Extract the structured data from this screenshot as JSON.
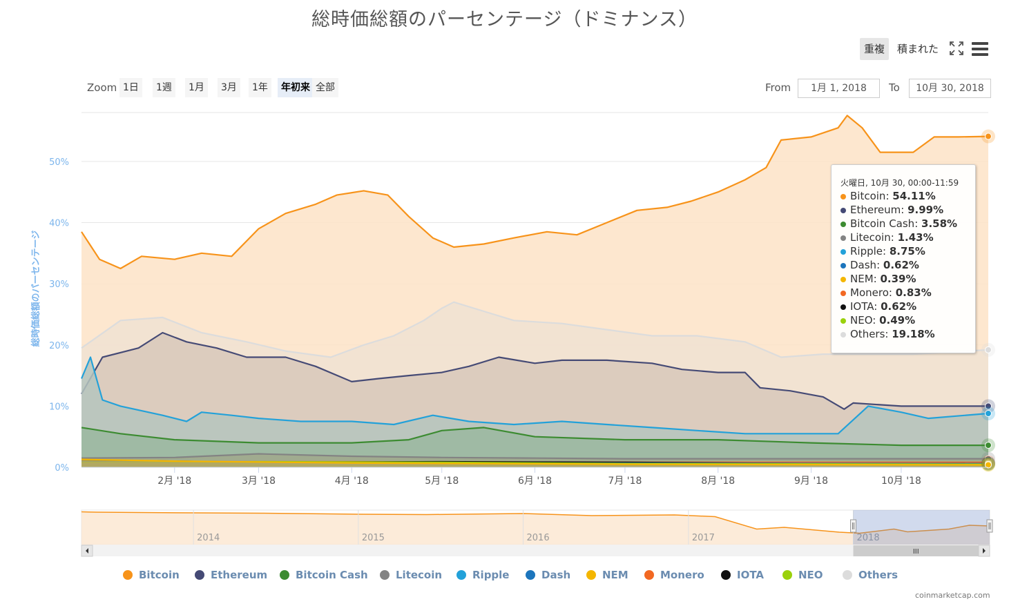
{
  "title": "総時価総額のパーセンテージ（ドミナンス）",
  "toolbar": {
    "overlap_label": "重複",
    "stacked_label": "積まれた",
    "fullscreen_icon": "fullscreen-icon",
    "menu_icon": "hamburger-menu-icon"
  },
  "zoom": {
    "label": "Zoom",
    "buttons": [
      "1日",
      "1週",
      "1月",
      "3月",
      "1年",
      "年初来",
      "全部"
    ],
    "active": "年初来"
  },
  "range": {
    "from_label": "From",
    "from_value": "1月 1, 2018",
    "to_label": "To",
    "to_value": "10月 30, 2018"
  },
  "tooltip": {
    "header": "火曜日, 10月 30, 00:00-11:59",
    "rows": [
      {
        "name": "Bitcoin",
        "value": "54.11%",
        "color": "#f7931a"
      },
      {
        "name": "Ethereum",
        "value": "9.99%",
        "color": "#454a75"
      },
      {
        "name": "Bitcoin Cash",
        "value": "3.58%",
        "color": "#3c8b31"
      },
      {
        "name": "Litecoin",
        "value": "1.43%",
        "color": "#838383"
      },
      {
        "name": "Ripple",
        "value": "8.75%",
        "color": "#23a1d9"
      },
      {
        "name": "Dash",
        "value": "0.62%",
        "color": "#1c75bc"
      },
      {
        "name": "NEM",
        "value": "0.39%",
        "color": "#f4b600"
      },
      {
        "name": "Monero",
        "value": "0.83%",
        "color": "#f26822"
      },
      {
        "name": "IOTA",
        "value": "0.62%",
        "color": "#111111"
      },
      {
        "name": "NEO",
        "value": "0.49%",
        "color": "#9ad10c"
      },
      {
        "name": "Others",
        "value": "19.18%",
        "color": "#dcdcdc"
      }
    ]
  },
  "legend": [
    {
      "name": "Bitcoin",
      "color": "#f7931a"
    },
    {
      "name": "Ethereum",
      "color": "#454a75"
    },
    {
      "name": "Bitcoin Cash",
      "color": "#3c8b31"
    },
    {
      "name": "Litecoin",
      "color": "#838383"
    },
    {
      "name": "Ripple",
      "color": "#23a1d9"
    },
    {
      "name": "Dash",
      "color": "#1c75bc"
    },
    {
      "name": "NEM",
      "color": "#f4b600"
    },
    {
      "name": "Monero",
      "color": "#f26822"
    },
    {
      "name": "IOTA",
      "color": "#111111"
    },
    {
      "name": "NEO",
      "color": "#9ad10c"
    },
    {
      "name": "Others",
      "color": "#dcdcdc"
    }
  ],
  "credit": "coinmarketcap.com",
  "navigator": {
    "years": [
      "2014",
      "2015",
      "2016",
      "2017",
      "2018"
    ],
    "scroll_grip": "III"
  },
  "chart_data": {
    "type": "area",
    "title": "総時価総額のパーセンテージ（ドミナンス）",
    "ylabel": "総時価総額のパーセンテージ",
    "ylim": [
      0,
      58
    ],
    "yticks": [
      0,
      10,
      20,
      30,
      40,
      50
    ],
    "ytick_labels": [
      "0%",
      "10%",
      "20%",
      "30%",
      "40%",
      "50%"
    ],
    "x_range": [
      "2018-01-01",
      "2018-10-30"
    ],
    "xticks": [
      {
        "date": "2018-02-01",
        "label": "2月 '18"
      },
      {
        "date": "2018-03-01",
        "label": "3月 '18"
      },
      {
        "date": "2018-04-01",
        "label": "4月 '18"
      },
      {
        "date": "2018-05-01",
        "label": "5月 '18"
      },
      {
        "date": "2018-06-01",
        "label": "6月 '18"
      },
      {
        "date": "2018-07-01",
        "label": "7月 '18"
      },
      {
        "date": "2018-08-01",
        "label": "8月 '18"
      },
      {
        "date": "2018-09-01",
        "label": "9月 '18"
      },
      {
        "date": "2018-10-01",
        "label": "10月 '18"
      }
    ],
    "grid": true,
    "legend_position": "bottom",
    "series": [
      {
        "name": "Bitcoin",
        "color": "#f7931a",
        "fill": "#fde3c7",
        "points": [
          [
            "2018-01-01",
            38.5
          ],
          [
            "2018-01-07",
            34
          ],
          [
            "2018-01-14",
            32.5
          ],
          [
            "2018-01-21",
            34.5
          ],
          [
            "2018-02-01",
            34
          ],
          [
            "2018-02-10",
            35
          ],
          [
            "2018-02-20",
            34.5
          ],
          [
            "2018-03-01",
            39
          ],
          [
            "2018-03-10",
            41.5
          ],
          [
            "2018-03-20",
            43
          ],
          [
            "2018-03-27",
            44.5
          ],
          [
            "2018-04-05",
            45.2
          ],
          [
            "2018-04-13",
            44.5
          ],
          [
            "2018-04-20",
            41
          ],
          [
            "2018-04-28",
            37.5
          ],
          [
            "2018-05-05",
            36
          ],
          [
            "2018-05-15",
            36.5
          ],
          [
            "2018-05-25",
            37.5
          ],
          [
            "2018-06-05",
            38.5
          ],
          [
            "2018-06-15",
            38
          ],
          [
            "2018-06-25",
            40
          ],
          [
            "2018-07-05",
            42
          ],
          [
            "2018-07-15",
            42.5
          ],
          [
            "2018-07-23",
            43.5
          ],
          [
            "2018-08-01",
            45
          ],
          [
            "2018-08-10",
            47
          ],
          [
            "2018-08-17",
            49
          ],
          [
            "2018-08-22",
            53.5
          ],
          [
            "2018-09-01",
            54
          ],
          [
            "2018-09-10",
            55.5
          ],
          [
            "2018-09-13",
            57.5
          ],
          [
            "2018-09-18",
            55.5
          ],
          [
            "2018-09-24",
            51.5
          ],
          [
            "2018-10-05",
            51.5
          ],
          [
            "2018-10-12",
            54
          ],
          [
            "2018-10-20",
            54
          ],
          [
            "2018-10-30",
            54.1
          ]
        ]
      },
      {
        "name": "Others",
        "color": "#dcdcdc",
        "fill": "#f0e2d2",
        "points": [
          [
            "2018-01-01",
            19.5
          ],
          [
            "2018-01-14",
            24
          ],
          [
            "2018-01-28",
            24.5
          ],
          [
            "2018-02-10",
            22
          ],
          [
            "2018-02-25",
            20.5
          ],
          [
            "2018-03-10",
            19
          ],
          [
            "2018-03-25",
            18
          ],
          [
            "2018-04-05",
            20
          ],
          [
            "2018-04-15",
            21.5
          ],
          [
            "2018-04-25",
            24
          ],
          [
            "2018-05-01",
            26
          ],
          [
            "2018-05-05",
            27
          ],
          [
            "2018-05-15",
            25.5
          ],
          [
            "2018-05-25",
            24
          ],
          [
            "2018-06-10",
            23.5
          ],
          [
            "2018-06-25",
            22.5
          ],
          [
            "2018-07-10",
            21.5
          ],
          [
            "2018-07-25",
            21.5
          ],
          [
            "2018-08-10",
            20.5
          ],
          [
            "2018-08-22",
            18
          ],
          [
            "2018-09-05",
            18.5
          ],
          [
            "2018-09-20",
            18.5
          ],
          [
            "2018-10-05",
            18.5
          ],
          [
            "2018-10-30",
            19.2
          ]
        ]
      },
      {
        "name": "Ethereum",
        "color": "#454a75",
        "fill": "#d8c8bb",
        "points": [
          [
            "2018-01-01",
            12
          ],
          [
            "2018-01-08",
            18
          ],
          [
            "2018-01-20",
            19.5
          ],
          [
            "2018-01-28",
            22
          ],
          [
            "2018-02-05",
            20.5
          ],
          [
            "2018-02-15",
            19.5
          ],
          [
            "2018-02-25",
            18
          ],
          [
            "2018-03-10",
            18
          ],
          [
            "2018-03-20",
            16.5
          ],
          [
            "2018-04-01",
            14
          ],
          [
            "2018-04-10",
            14.5
          ],
          [
            "2018-04-20",
            15
          ],
          [
            "2018-05-01",
            15.5
          ],
          [
            "2018-05-10",
            16.5
          ],
          [
            "2018-05-20",
            18
          ],
          [
            "2018-06-01",
            17
          ],
          [
            "2018-06-10",
            17.5
          ],
          [
            "2018-06-25",
            17.5
          ],
          [
            "2018-07-10",
            17
          ],
          [
            "2018-07-20",
            16
          ],
          [
            "2018-08-01",
            15.5
          ],
          [
            "2018-08-10",
            15.5
          ],
          [
            "2018-08-15",
            13
          ],
          [
            "2018-08-25",
            12.5
          ],
          [
            "2018-09-05",
            11.5
          ],
          [
            "2018-09-12",
            9.5
          ],
          [
            "2018-09-15",
            10.5
          ],
          [
            "2018-10-01",
            10
          ],
          [
            "2018-10-30",
            10
          ]
        ]
      },
      {
        "name": "Ripple",
        "color": "#23a1d9",
        "fill": "#b5c4be",
        "points": [
          [
            "2018-01-01",
            14.5
          ],
          [
            "2018-01-04",
            18
          ],
          [
            "2018-01-08",
            11
          ],
          [
            "2018-01-14",
            10
          ],
          [
            "2018-01-28",
            8.5
          ],
          [
            "2018-02-05",
            7.5
          ],
          [
            "2018-02-10",
            9
          ],
          [
            "2018-02-20",
            8.5
          ],
          [
            "2018-03-01",
            8
          ],
          [
            "2018-03-15",
            7.5
          ],
          [
            "2018-04-01",
            7.5
          ],
          [
            "2018-04-15",
            7
          ],
          [
            "2018-04-28",
            8.5
          ],
          [
            "2018-05-10",
            7.5
          ],
          [
            "2018-05-25",
            7
          ],
          [
            "2018-06-10",
            7.5
          ],
          [
            "2018-06-25",
            7
          ],
          [
            "2018-07-10",
            6.5
          ],
          [
            "2018-07-25",
            6
          ],
          [
            "2018-08-10",
            5.5
          ],
          [
            "2018-08-25",
            5.5
          ],
          [
            "2018-09-10",
            5.5
          ],
          [
            "2018-09-20",
            10
          ],
          [
            "2018-10-01",
            9
          ],
          [
            "2018-10-10",
            8
          ],
          [
            "2018-10-30",
            8.8
          ]
        ]
      },
      {
        "name": "Bitcoin Cash",
        "color": "#3c8b31",
        "fill": "#9ab7a0",
        "points": [
          [
            "2018-01-01",
            6.5
          ],
          [
            "2018-01-14",
            5.5
          ],
          [
            "2018-02-01",
            4.5
          ],
          [
            "2018-03-01",
            4
          ],
          [
            "2018-04-01",
            4
          ],
          [
            "2018-04-20",
            4.5
          ],
          [
            "2018-05-01",
            6
          ],
          [
            "2018-05-15",
            6.5
          ],
          [
            "2018-06-01",
            5
          ],
          [
            "2018-07-01",
            4.5
          ],
          [
            "2018-08-01",
            4.5
          ],
          [
            "2018-09-01",
            4
          ],
          [
            "2018-10-01",
            3.6
          ],
          [
            "2018-10-30",
            3.6
          ]
        ]
      },
      {
        "name": "Litecoin",
        "color": "#838383",
        "fill": "#a0a88c",
        "points": [
          [
            "2018-01-01",
            1.5
          ],
          [
            "2018-02-01",
            1.6
          ],
          [
            "2018-03-01",
            2.2
          ],
          [
            "2018-04-01",
            1.8
          ],
          [
            "2018-05-01",
            1.6
          ],
          [
            "2018-06-01",
            1.5
          ],
          [
            "2018-07-01",
            1.4
          ],
          [
            "2018-08-01",
            1.4
          ],
          [
            "2018-09-01",
            1.4
          ],
          [
            "2018-10-30",
            1.4
          ]
        ]
      },
      {
        "name": "Monero",
        "color": "#f26822",
        "fill": "#a19a7c",
        "points": [
          [
            "2018-01-01",
            0.9
          ],
          [
            "2018-04-01",
            0.9
          ],
          [
            "2018-07-01",
            0.8
          ],
          [
            "2018-10-30",
            0.8
          ]
        ]
      },
      {
        "name": "IOTA",
        "color": "#111111",
        "fill": "#96937a",
        "points": [
          [
            "2018-01-01",
            1.2
          ],
          [
            "2018-03-01",
            0.8
          ],
          [
            "2018-05-01",
            0.9
          ],
          [
            "2018-07-01",
            0.8
          ],
          [
            "2018-09-01",
            0.6
          ],
          [
            "2018-10-30",
            0.6
          ]
        ]
      },
      {
        "name": "Dash",
        "color": "#1c75bc",
        "fill": "#9a9a7a",
        "points": [
          [
            "2018-01-01",
            0.9
          ],
          [
            "2018-05-01",
            0.7
          ],
          [
            "2018-10-30",
            0.6
          ]
        ]
      },
      {
        "name": "NEO",
        "color": "#9ad10c",
        "fill": "#a8aa6e",
        "points": [
          [
            "2018-01-01",
            0.8
          ],
          [
            "2018-03-01",
            0.9
          ],
          [
            "2018-05-01",
            0.8
          ],
          [
            "2018-07-01",
            0.6
          ],
          [
            "2018-10-30",
            0.5
          ]
        ]
      },
      {
        "name": "NEM",
        "color": "#f4b600",
        "fill": "#b4a860",
        "points": [
          [
            "2018-01-01",
            1.3
          ],
          [
            "2018-02-01",
            1
          ],
          [
            "2018-04-01",
            0.7
          ],
          [
            "2018-07-01",
            0.5
          ],
          [
            "2018-10-30",
            0.4
          ]
        ]
      }
    ],
    "navigator_series": {
      "name": "Bitcoin",
      "x_range": [
        "2013-04-28",
        "2018-10-30"
      ],
      "points": [
        [
          "2013-04-28",
          95
        ],
        [
          "2013-06-01",
          94
        ],
        [
          "2014-01-01",
          92
        ],
        [
          "2014-06-01",
          91
        ],
        [
          "2015-01-01",
          88
        ],
        [
          "2015-06-01",
          87
        ],
        [
          "2016-01-01",
          90
        ],
        [
          "2016-06-01",
          84
        ],
        [
          "2016-12-01",
          86
        ],
        [
          "2017-03-01",
          81
        ],
        [
          "2017-06-01",
          45
        ],
        [
          "2017-08-01",
          50
        ],
        [
          "2017-12-01",
          36
        ],
        [
          "2018-01-15",
          33
        ],
        [
          "2018-04-01",
          45
        ],
        [
          "2018-05-01",
          37
        ],
        [
          "2018-08-01",
          45
        ],
        [
          "2018-09-15",
          56
        ],
        [
          "2018-10-30",
          54
        ]
      ]
    }
  }
}
